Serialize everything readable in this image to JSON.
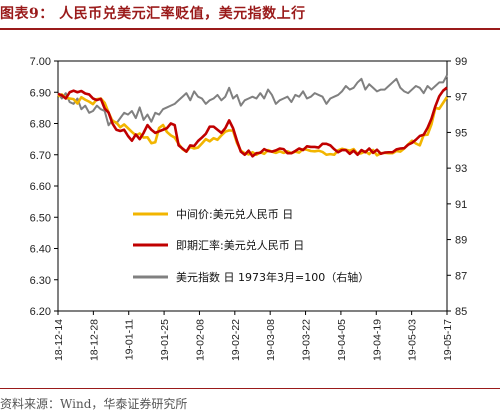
{
  "title": "图表9： 人民币兑美元汇率贬值，美元指数上行",
  "source": "资料来源：Wind，华泰证券研究所",
  "chart_data": {
    "type": "line",
    "x_ticks": [
      "18-12-14",
      "18-12-28",
      "19-01-11",
      "19-01-25",
      "19-02-08",
      "19-02-22",
      "19-03-08",
      "19-03-22",
      "19-04-05",
      "19-04-19",
      "19-05-03",
      "19-05-17"
    ],
    "left_axis": {
      "min": 6.2,
      "max": 7.0,
      "ticks": [
        "6.20",
        "6.30",
        "6.40",
        "6.50",
        "6.60",
        "6.70",
        "6.80",
        "6.90",
        "7.00"
      ]
    },
    "right_axis": {
      "min": 85,
      "max": 99,
      "ticks": [
        "85",
        "87",
        "89",
        "91",
        "93",
        "95",
        "97",
        "99"
      ]
    },
    "legend_position": "center-left",
    "series": [
      {
        "name": "中间价:美元兑人民币 日",
        "axis": "left",
        "color": "#f2b500",
        "values": [
          6.887,
          6.893,
          6.882,
          6.88,
          6.878,
          6.864,
          6.884,
          6.876,
          6.87,
          6.862,
          6.878,
          6.88,
          6.866,
          6.835,
          6.808,
          6.803,
          6.788,
          6.797,
          6.785,
          6.773,
          6.762,
          6.768,
          6.755,
          6.756,
          6.737,
          6.74,
          6.786,
          6.795,
          6.773,
          6.762,
          6.755,
          6.735,
          6.718,
          6.71,
          6.725,
          6.72,
          6.723,
          6.736,
          6.75,
          6.743,
          6.753,
          6.748,
          6.762,
          6.774,
          6.778,
          6.777,
          6.738,
          6.713,
          6.705,
          6.701,
          6.708,
          6.7,
          6.708,
          6.703,
          6.715,
          6.71,
          6.706,
          6.711,
          6.706,
          6.711,
          6.705,
          6.71,
          6.707,
          6.718,
          6.716,
          6.712,
          6.711,
          6.713,
          6.709,
          6.7,
          6.702,
          6.7,
          6.714,
          6.719,
          6.716,
          6.713,
          6.718,
          6.703,
          6.705,
          6.711,
          6.702,
          6.715,
          6.698,
          6.705,
          6.706,
          6.705,
          6.705,
          6.712,
          6.71,
          6.72,
          6.733,
          6.745,
          6.736,
          6.73,
          6.763,
          6.764,
          6.797,
          6.85,
          6.847,
          6.866,
          6.885
        ]
      },
      {
        "name": "即期汇率:美元兑人民币 日",
        "axis": "left",
        "color": "#c00000",
        "values": [
          6.895,
          6.89,
          6.88,
          6.9,
          6.905,
          6.9,
          6.904,
          6.896,
          6.893,
          6.88,
          6.875,
          6.879,
          6.848,
          6.835,
          6.8,
          6.78,
          6.776,
          6.78,
          6.76,
          6.745,
          6.765,
          6.75,
          6.77,
          6.795,
          6.78,
          6.77,
          6.775,
          6.78,
          6.785,
          6.8,
          6.795,
          6.73,
          6.72,
          6.71,
          6.73,
          6.728,
          6.744,
          6.755,
          6.767,
          6.79,
          6.79,
          6.78,
          6.77,
          6.785,
          6.81,
          6.785,
          6.745,
          6.71,
          6.7,
          6.713,
          6.695,
          6.705,
          6.706,
          6.718,
          6.712,
          6.71,
          6.714,
          6.72,
          6.718,
          6.705,
          6.705,
          6.712,
          6.72,
          6.715,
          6.727,
          6.725,
          6.725,
          6.723,
          6.735,
          6.735,
          6.73,
          6.718,
          6.708,
          6.715,
          6.715,
          6.703,
          6.713,
          6.7,
          6.715,
          6.708,
          6.72,
          6.706,
          6.716,
          6.703,
          6.707,
          6.708,
          6.708,
          6.717,
          6.72,
          6.721,
          6.732,
          6.738,
          6.748,
          6.76,
          6.764,
          6.786,
          6.815,
          6.855,
          6.887,
          6.905,
          6.915
        ]
      },
      {
        "name": "美元指数 日 1973年3月=100（右轴）",
        "axis": "right",
        "color": "#808080",
        "values": [
          97.2,
          96.9,
          97.2,
          96.7,
          96.6,
          96.9,
          96.3,
          96.5,
          96.1,
          96.2,
          96.5,
          96.3,
          96.2,
          95.4,
          95.7,
          95.5,
          95.8,
          96.1,
          96.0,
          96.2,
          95.8,
          96.4,
          95.7,
          96.0,
          95.6,
          96.1,
          96.0,
          96.3,
          96.4,
          96.5,
          96.6,
          96.8,
          97.0,
          97.2,
          96.8,
          97.3,
          97.0,
          96.9,
          96.6,
          96.8,
          96.9,
          97.1,
          96.8,
          97.0,
          97.5,
          96.9,
          97.1,
          96.5,
          96.8,
          96.9,
          97.0,
          96.9,
          97.2,
          96.9,
          97.4,
          97.1,
          96.6,
          96.8,
          96.9,
          97.0,
          96.7,
          97.1,
          97.0,
          97.3,
          96.9,
          97.0,
          97.2,
          97.1,
          97.0,
          96.6,
          96.9,
          97.0,
          97.1,
          97.3,
          97.6,
          97.4,
          97.5,
          97.8,
          98.0,
          97.4,
          97.7,
          97.5,
          97.3,
          97.4,
          97.4,
          97.6,
          97.8,
          98.0,
          97.5,
          97.3,
          97.2,
          97.4,
          97.6,
          97.5,
          97.2,
          97.6,
          97.4,
          97.6,
          97.8,
          97.8,
          98.2
        ]
      }
    ]
  }
}
